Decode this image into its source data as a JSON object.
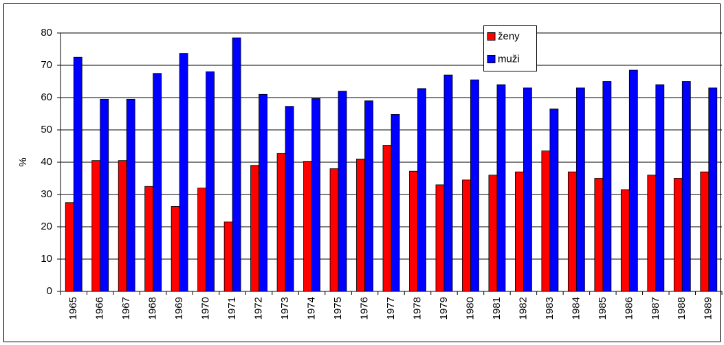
{
  "chart_data": {
    "type": "bar",
    "y_label": "%",
    "categories": [
      "1965",
      "1966",
      "1967",
      "1968",
      "1969",
      "1970",
      "1971",
      "1972",
      "1973",
      "1974",
      "1975",
      "1976",
      "1977",
      "1978",
      "1979",
      "1980",
      "1981",
      "1982",
      "1983",
      "1984",
      "1985",
      "1986",
      "1987",
      "1988",
      "1989"
    ],
    "series": [
      {
        "name": "ženy",
        "color": "#ff0000",
        "values": [
          27.5,
          40.5,
          40.5,
          32.5,
          26.3,
          32,
          21.5,
          39,
          42.7,
          40.3,
          38,
          41,
          45.2,
          37.2,
          33,
          34.5,
          36,
          37,
          43.5,
          37,
          35,
          31.5,
          36,
          35,
          37
        ]
      },
      {
        "name": "muži",
        "color": "#0000ff",
        "values": [
          72.5,
          59.5,
          59.5,
          67.5,
          73.7,
          68,
          78.5,
          61,
          57.3,
          59.7,
          62,
          59,
          54.8,
          62.8,
          67,
          65.5,
          64,
          63,
          56.5,
          63,
          65,
          68.5,
          64,
          65,
          63
        ]
      }
    ],
    "ylim": [
      0,
      80
    ],
    "yticks": [
      0,
      10,
      20,
      30,
      40,
      50,
      60,
      70,
      80
    ],
    "grid": true,
    "legend": "top-right"
  }
}
